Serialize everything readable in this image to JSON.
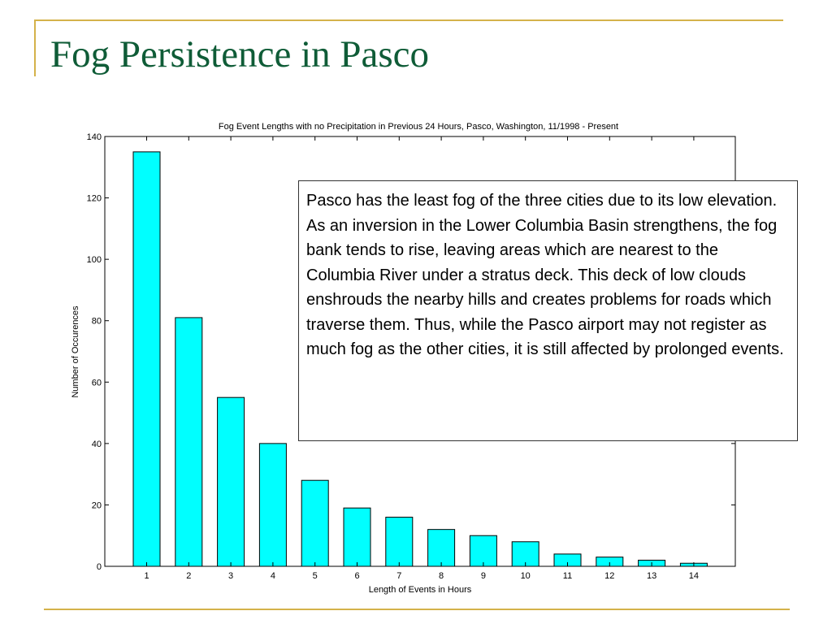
{
  "slide": {
    "title": "Fog Persistence in Pasco",
    "note": "Pasco has the least fog of the three cities due to its low elevation. As an inversion in the Lower Columbia Basin strengthens, the fog bank tends to rise, leaving areas which are nearest to the Columbia River under a stratus deck. This deck of low clouds enshrouds the nearby hills and creates problems for roads which traverse them. Thus, while the Pasco airport may not register as much fog as the other cities, it is still affected by prolonged events."
  },
  "colors": {
    "title": "#0f5c37",
    "frame": "#d4b24a",
    "bar_fill": "#00ffff",
    "bar_stroke": "#000000"
  },
  "chart_data": {
    "type": "bar",
    "title": "Fog Event Lengths with no Precipitation in Previous 24 Hours, Pasco, Washington, 11/1998 - Present",
    "xlabel": "Length of Events in Hours",
    "ylabel": "Number of Occurences",
    "categories": [
      "1",
      "2",
      "3",
      "4",
      "5",
      "6",
      "7",
      "8",
      "9",
      "10",
      "11",
      "12",
      "13",
      "14"
    ],
    "values": [
      135,
      81,
      55,
      40,
      28,
      19,
      16,
      12,
      10,
      8,
      4,
      3,
      2,
      1
    ],
    "ylim": [
      0,
      140
    ],
    "yticks": [
      "0",
      "20",
      "40",
      "60",
      "80",
      "100",
      "120",
      "140"
    ],
    "grid": false,
    "legend": "none"
  }
}
